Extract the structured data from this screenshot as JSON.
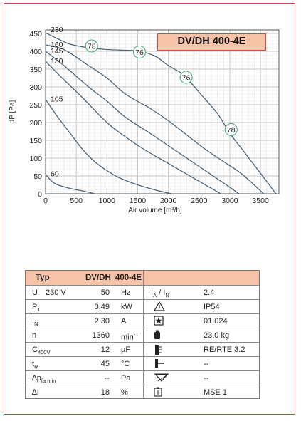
{
  "chart_data": {
    "type": "line",
    "title": "DV/DH 400-4E",
    "xlabel": "Air volume [m³/h]",
    "ylabel": "dP [Pa]",
    "xlim": [
      0,
      3800
    ],
    "ylim": [
      0,
      460
    ],
    "xticks": [
      0,
      500,
      1000,
      1500,
      2000,
      2500,
      3000,
      3500
    ],
    "yticks": [
      0,
      50,
      100,
      150,
      200,
      250,
      300,
      350,
      400,
      450
    ],
    "grid": true,
    "series": [
      {
        "name": "230",
        "x": [
          0,
          200,
          400,
          700,
          1000,
          1300,
          1550,
          1800,
          2000,
          2200,
          2300,
          2500,
          2800,
          3000,
          3200,
          3400,
          3600,
          3750
        ],
        "y": [
          452,
          435,
          420,
          410,
          405,
          403,
          400,
          385,
          360,
          340,
          325,
          285,
          225,
          170,
          125,
          80,
          35,
          0
        ]
      },
      {
        "name": "160",
        "x": [
          0,
          300,
          700,
          1000,
          1300,
          1700,
          2000,
          2300,
          2600,
          2900,
          3200,
          3550
        ],
        "y": [
          418,
          405,
          360,
          325,
          280,
          240,
          205,
          165,
          125,
          90,
          55,
          0
        ]
      },
      {
        "name": "145",
        "x": [
          0,
          300,
          700,
          1000,
          1300,
          1700,
          2000,
          2300,
          2600,
          2900,
          3150
        ],
        "y": [
          400,
          360,
          300,
          260,
          215,
          170,
          135,
          100,
          65,
          30,
          0
        ]
      },
      {
        "name": "130",
        "x": [
          0,
          300,
          600,
          1000,
          1300,
          1600,
          2000,
          2300,
          2600,
          2850
        ],
        "y": [
          372,
          320,
          270,
          200,
          160,
          125,
          85,
          55,
          25,
          0
        ]
      },
      {
        "name": "105",
        "x": [
          0,
          200,
          400,
          600,
          800,
          1000,
          1200,
          1500,
          1800,
          2050
        ],
        "y": [
          265,
          215,
          170,
          125,
          90,
          65,
          45,
          25,
          10,
          0
        ]
      },
      {
        "name": "60",
        "x": [
          0,
          100,
          200,
          400,
          600,
          800
        ],
        "y": [
          55,
          35,
          25,
          15,
          8,
          0
        ]
      }
    ],
    "annotations": [
      {
        "text": "78",
        "x": 750,
        "y": 415
      },
      {
        "text": "76",
        "x": 1530,
        "y": 398
      },
      {
        "text": "76",
        "x": 2290,
        "y": 327
      },
      {
        "text": "78",
        "x": 3020,
        "y": 180
      }
    ]
  },
  "specs": {
    "header": {
      "col1": "Typ",
      "col2": "DV/DH",
      "col3": "400-4E"
    },
    "left_rows": [
      {
        "param": "U",
        "extra": "230  V",
        "value": "50",
        "unit": "Hz"
      },
      {
        "param": "P",
        "sub": "1",
        "value": "0.49",
        "unit": "kW"
      },
      {
        "param": "I",
        "sub": "N",
        "value": "2.30",
        "unit": "A"
      },
      {
        "param": "n",
        "value": "1360",
        "unit": "min",
        "unit_sup": "-1"
      },
      {
        "param": "C",
        "sub": "400V",
        "value": "12",
        "unit": "µF"
      },
      {
        "param": "t",
        "sub": "R",
        "value": "45",
        "unit": "°C"
      },
      {
        "param": "∆p",
        "sub": "fa min",
        "value": "--",
        "unit": "Pa"
      },
      {
        "param": "∆I",
        "value": "18",
        "unit": "%"
      }
    ],
    "right_rows": [
      {
        "icon": "ratio",
        "label_a": "I",
        "sub_a": "A",
        "label_b": "/ I",
        "sub_b": "N",
        "value": "2.4"
      },
      {
        "icon": "warning-triangle-icon",
        "value": "IP54"
      },
      {
        "icon": "star-box-icon",
        "value": "01.024"
      },
      {
        "icon": "weight-icon",
        "value": "23.0 kg"
      },
      {
        "icon": "wiring-diagram-icon",
        "value": "RE/RTE 3.2"
      },
      {
        "icon": "thermal-contact-icon",
        "value": "--"
      },
      {
        "icon": "valve-icon",
        "value": "--"
      },
      {
        "icon": "controller-icon",
        "value": "MSE 1"
      }
    ]
  }
}
